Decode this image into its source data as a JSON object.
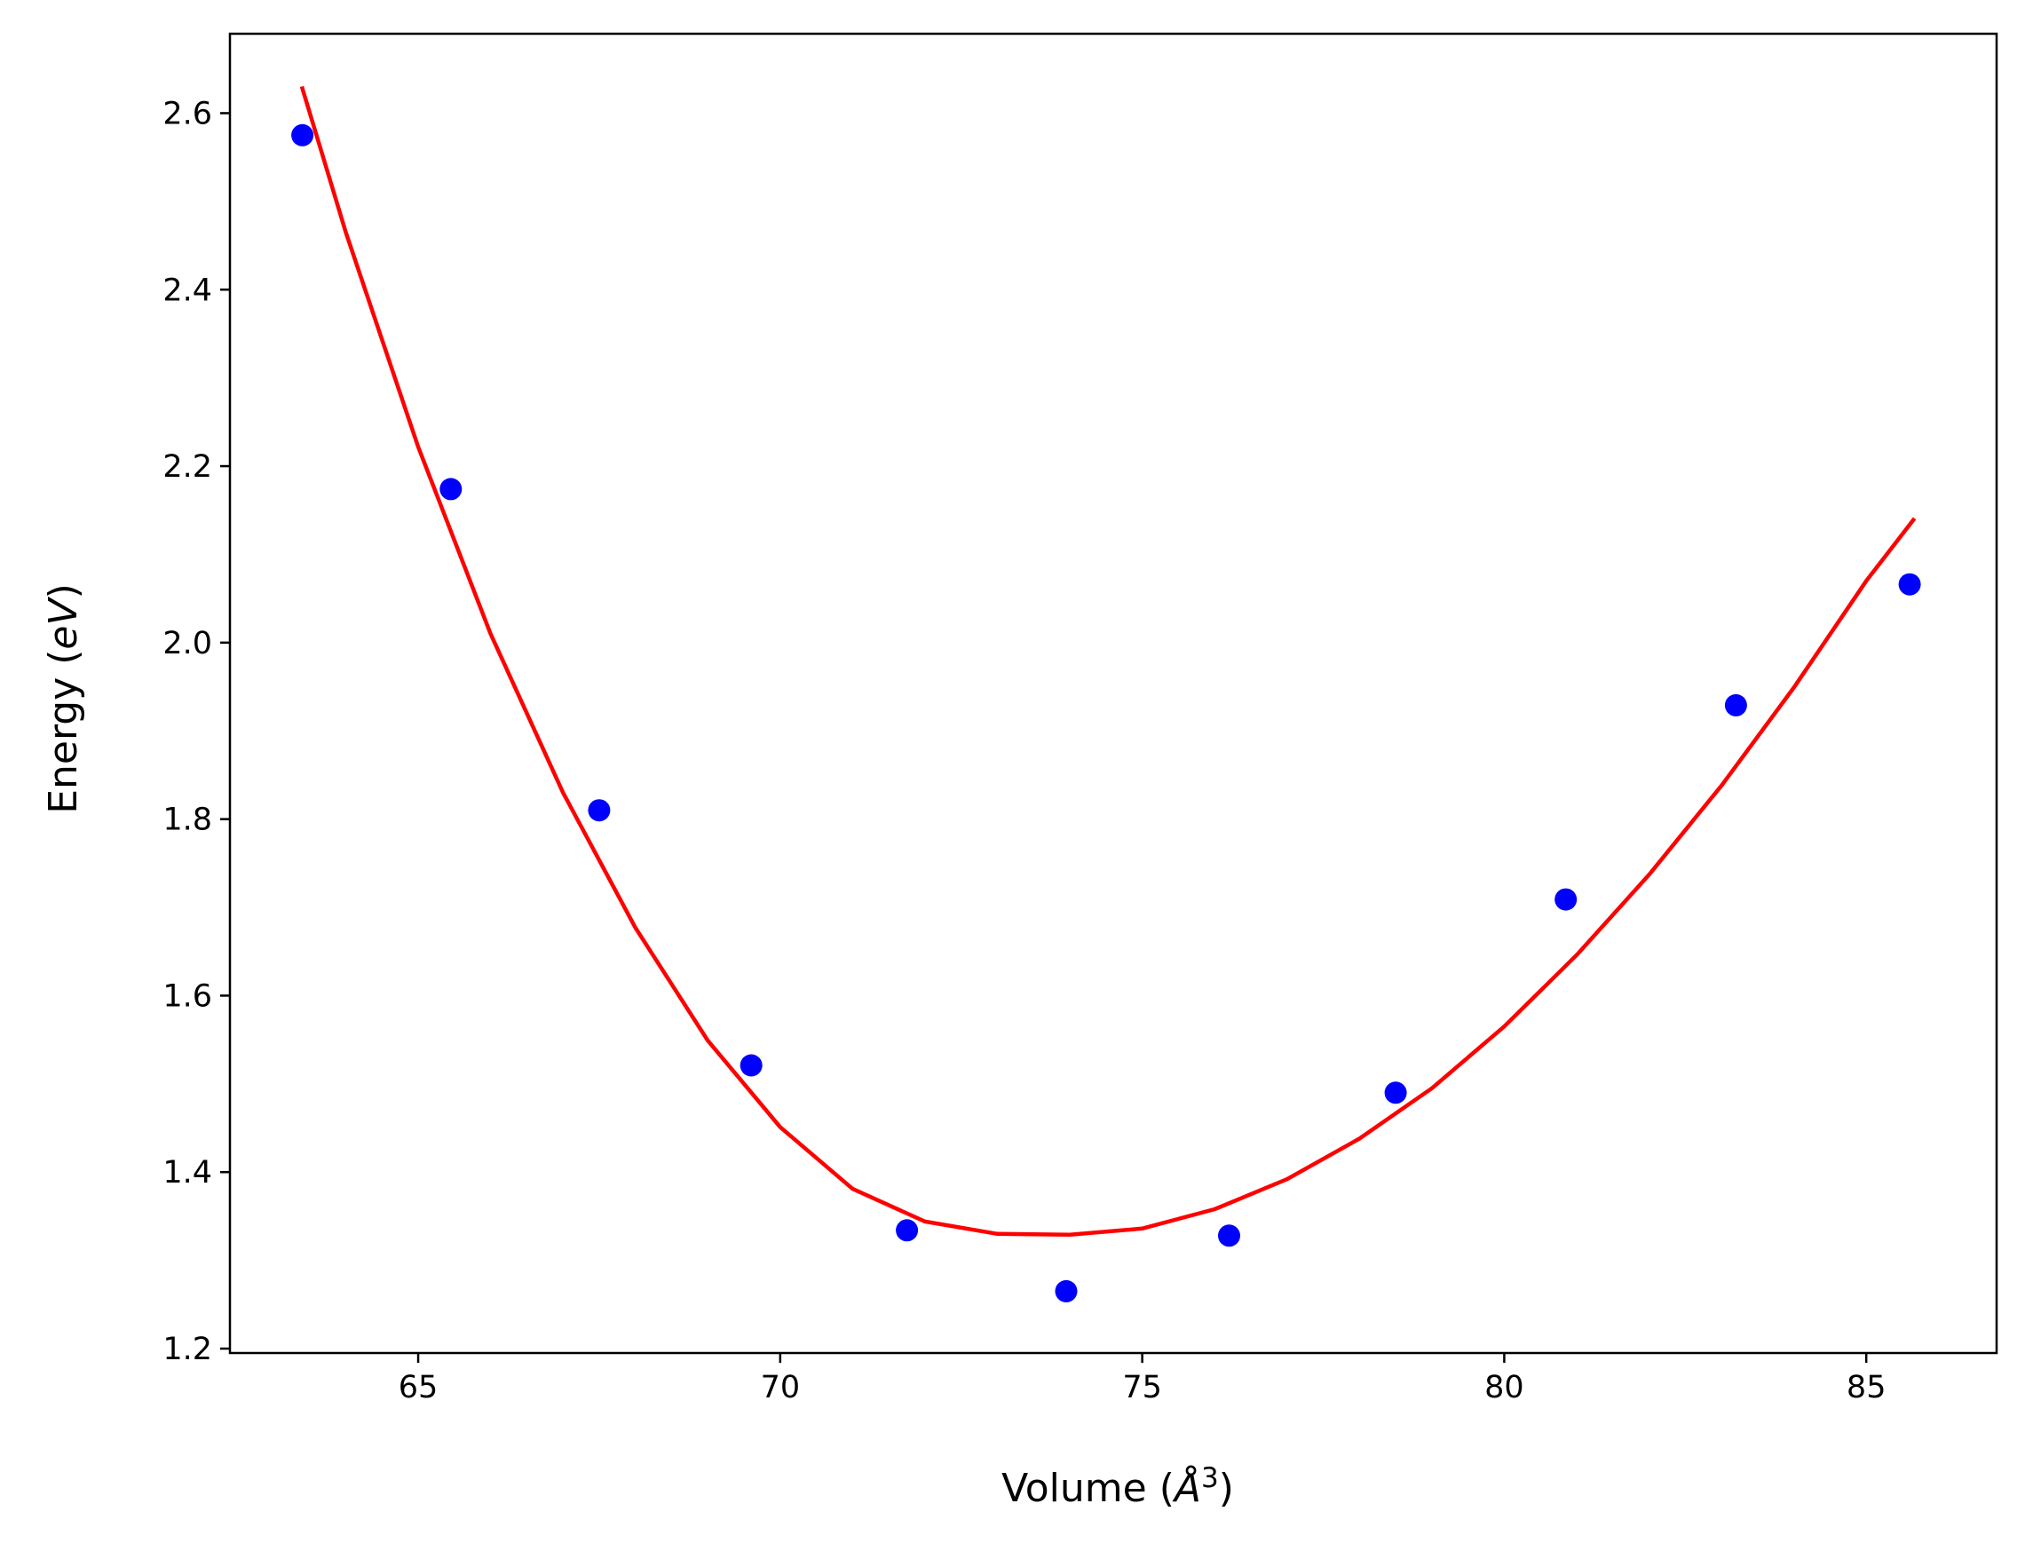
{
  "chart_data": {
    "type": "scatter",
    "xlabel": {
      "prefix": "Volume (",
      "symbol": "Å",
      "sup": "3",
      "suffix": ")"
    },
    "ylabel": {
      "prefix": "Energy (",
      "unit": "eV",
      "suffix": ")"
    },
    "xlim": [
      62.4,
      86.8
    ],
    "ylim": [
      1.195,
      2.69
    ],
    "xticks": [
      65,
      70,
      75,
      80,
      85
    ],
    "yticks": [
      1.2,
      1.4,
      1.6,
      1.8,
      2.0,
      2.2,
      2.4,
      2.6
    ],
    "xtick_labels": [
      "65",
      "70",
      "75",
      "80",
      "85"
    ],
    "ytick_labels": [
      "1.2",
      "1.4",
      "1.6",
      "1.8",
      "2.0",
      "2.2",
      "2.4",
      "2.6"
    ],
    "grid": false,
    "series": [
      {
        "kind": "points",
        "color": "#0000ff",
        "x": [
          63.4,
          65.45,
          67.5,
          69.6,
          71.75,
          73.95,
          76.2,
          78.5,
          80.85,
          83.2,
          85.6
        ],
        "y": [
          2.575,
          2.174,
          1.81,
          1.521,
          1.334,
          1.265,
          1.328,
          1.49,
          1.709,
          1.929,
          2.066
        ]
      },
      {
        "kind": "line",
        "color": "#ff0000",
        "x": [
          63.4,
          64.0,
          65.0,
          66.0,
          67.0,
          68.0,
          69.0,
          70.0,
          71.0,
          72.0,
          73.0,
          74.0,
          75.0,
          76.0,
          77.0,
          78.0,
          79.0,
          80.0,
          81.0,
          82.0,
          83.0,
          84.0,
          85.0,
          85.65
        ],
        "y": [
          2.628,
          2.465,
          2.222,
          2.01,
          1.83,
          1.677,
          1.549,
          1.451,
          1.381,
          1.344,
          1.33,
          1.329,
          1.336,
          1.358,
          1.392,
          1.438,
          1.495,
          1.565,
          1.646,
          1.737,
          1.838,
          1.949,
          2.07,
          2.139
        ]
      }
    ]
  }
}
